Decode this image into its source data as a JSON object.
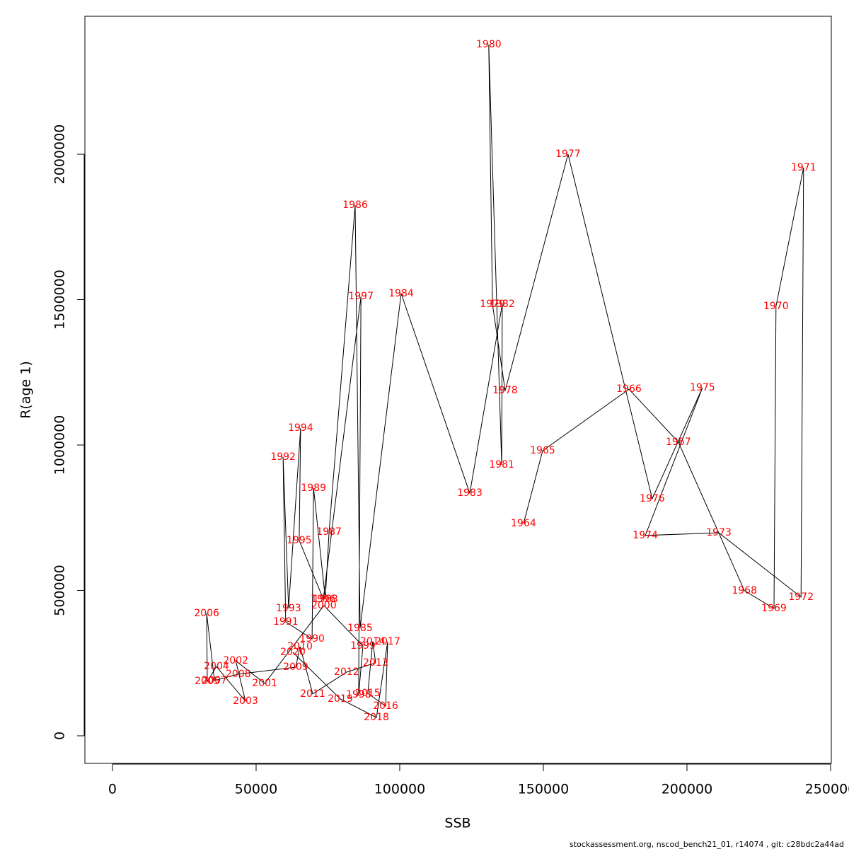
{
  "chart_data": {
    "type": "line",
    "xlabel": "SSB",
    "ylabel": "R(age 1)",
    "footnote": "stockassessment.org, nscod_bench21_01, r14074 , git: c28bdc2a44ad",
    "labels": [
      "1964",
      "1965",
      "1966",
      "1967",
      "1968",
      "1969",
      "1970",
      "1971",
      "1972",
      "1973",
      "1974",
      "1975",
      "1976",
      "1977",
      "1978",
      "1979",
      "1980",
      "1981",
      "1982",
      "1983",
      "1984",
      "1985",
      "1986",
      "1987",
      "1988",
      "1989",
      "1990",
      "1991",
      "1992",
      "1993",
      "1994",
      "1995",
      "1996",
      "1997",
      "1998",
      "1999",
      "2000",
      "2001",
      "2002",
      "2003",
      "2004",
      "2005",
      "2006",
      "2007",
      "2008",
      "2009",
      "2010",
      "2011",
      "2012",
      "2013",
      "2014",
      "2015",
      "2016",
      "2017",
      "2018",
      "2019",
      "2020"
    ],
    "x": [
      143100,
      149750,
      179800,
      197000,
      220000,
      230300,
      231000,
      240600,
      239700,
      211100,
      185500,
      205400,
      187900,
      158600,
      136700,
      132300,
      131000,
      135500,
      135700,
      124400,
      100500,
      86200,
      84500,
      75400,
      74100,
      70000,
      69500,
      60300,
      59400,
      61300,
      65500,
      65000,
      73400,
      86500,
      85700,
      87200,
      73600,
      53000,
      42900,
      46300,
      36200,
      33000,
      32800,
      35500,
      43800,
      63800,
      65300,
      69700,
      81500,
      91600,
      90600,
      88900,
      95100,
      95800,
      91900,
      79300,
      62800
    ],
    "values": [
      730000,
      980500,
      1192000,
      1010000,
      499000,
      438000,
      1477000,
      1954000,
      477000,
      698000,
      689000,
      1197000,
      815000,
      2000000,
      1187000,
      1484000,
      2377000,
      932000,
      1484000,
      834000,
      1521000,
      370000,
      1825000,
      701000,
      470000,
      852000,
      333000,
      392000,
      959000,
      438000,
      1058000,
      672000,
      470000,
      1511000,
      141000,
      309000,
      448000,
      180000,
      258000,
      119000,
      238000,
      187000,
      421000,
      190000,
      212000,
      236000,
      307000,
      144000,
      219000,
      251000,
      324000,
      146000,
      102000,
      324000,
      63000,
      127000,
      287000
    ],
    "color": "#000000",
    "label_color": "#ff0000",
    "xlim": [
      -9600,
      250250
    ],
    "ylim": [
      -94900,
      2474500
    ],
    "xticks": [
      0,
      50000,
      100000,
      150000,
      200000,
      250000
    ],
    "yticks": [
      0,
      500000,
      1000000,
      1500000,
      2000000
    ]
  }
}
